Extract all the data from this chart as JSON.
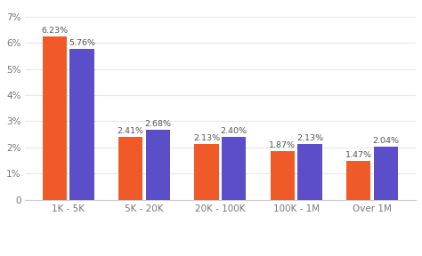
{
  "categories": [
    "1K - 5K",
    "5K - 20K",
    "20K - 100K",
    "100K - 1M",
    "Over 1M"
  ],
  "romania_values": [
    6.23,
    2.41,
    2.13,
    1.87,
    1.47
  ],
  "worldwide_values": [
    5.76,
    2.68,
    2.4,
    2.13,
    2.04
  ],
  "romania_color": "#F05A28",
  "worldwide_color": "#5B4EC8",
  "background_color": "#ffffff",
  "grid_color": "#e8e8e8",
  "ylabel_ticks": [
    "0",
    "1%",
    "2%",
    "3%",
    "4%",
    "5%",
    "6%",
    "7%"
  ],
  "ytick_values": [
    0,
    1,
    2,
    3,
    4,
    5,
    6,
    7
  ],
  "ylim": [
    0,
    7.4
  ],
  "bar_width": 0.32,
  "annotation_fontsize": 6.8,
  "annotation_color": "#555555",
  "tick_label_color": "#777777",
  "tick_label_fontsize": 7.5,
  "bar_gap": 0.04
}
